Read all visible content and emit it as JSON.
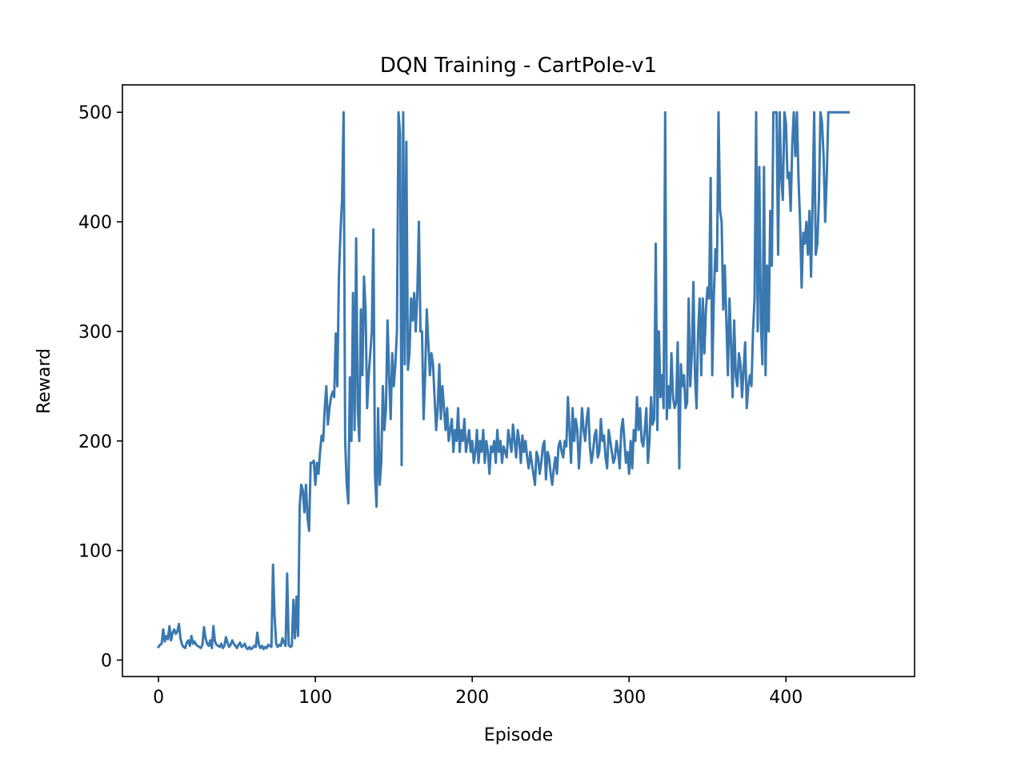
{
  "chart_data": {
    "type": "line",
    "title": "DQN Training - CartPole-v1",
    "xlabel": "Episode",
    "ylabel": "Reward",
    "xlim": [
      -23,
      482
    ],
    "ylim": [
      -15,
      525
    ],
    "xticks": [
      0,
      100,
      200,
      300,
      400
    ],
    "yticks": [
      0,
      100,
      200,
      300,
      400,
      500
    ],
    "grid": false,
    "series": [
      {
        "color": "#3a78b0",
        "x_start": 0,
        "x_step": 1,
        "values": [
          12,
          14,
          15,
          28,
          17,
          22,
          19,
          31,
          18,
          25,
          28,
          24,
          26,
          33,
          20,
          14,
          12,
          11,
          16,
          18,
          13,
          22,
          15,
          17,
          14,
          13,
          12,
          11,
          14,
          30,
          20,
          15,
          13,
          18,
          11,
          31,
          17,
          14,
          13,
          12,
          15,
          11,
          13,
          21,
          16,
          12,
          14,
          18,
          15,
          13,
          11,
          14,
          16,
          12,
          13,
          15,
          11,
          10,
          12,
          10,
          11,
          13,
          12,
          25,
          14,
          11,
          13,
          10,
          12,
          11,
          14,
          13,
          12,
          87,
          40,
          15,
          12,
          14,
          13,
          20,
          16,
          13,
          79,
          14,
          12,
          13,
          55,
          20,
          58,
          22,
          140,
          160,
          155,
          135,
          160,
          130,
          118,
          180,
          180,
          182,
          160,
          180,
          170,
          190,
          205,
          200,
          230,
          250,
          215,
          230,
          240,
          245,
          240,
          298,
          250,
          350,
          390,
          420,
          500,
          200,
          160,
          143,
          258,
          200,
          335,
          210,
          385,
          230,
          200,
          320,
          260,
          350,
          320,
          230,
          260,
          280,
          300,
          393,
          170,
          140,
          230,
          160,
          180,
          250,
          210,
          230,
          310,
          260,
          220,
          280,
          250,
          270,
          300,
          500,
          480,
          178,
          500,
          270,
          473,
          265,
          280,
          330,
          310,
          335,
          300,
          335,
          400,
          300,
          300,
          220,
          260,
          320,
          290,
          260,
          280,
          270,
          240,
          210,
          230,
          270,
          220,
          250,
          230,
          210,
          230,
          200,
          210,
          220,
          190,
          210,
          200,
          230,
          190,
          210,
          200,
          220,
          190,
          200,
          210,
          190,
          200,
          180,
          190,
          210,
          180,
          200,
          190,
          210,
          180,
          200,
          190,
          170,
          195,
          190,
          200,
          180,
          210,
          190,
          200,
          180,
          195,
          190,
          185,
          210,
          200,
          190,
          215,
          200,
          185,
          210,
          200,
          180,
          205,
          190,
          200,
          185,
          175,
          190,
          180,
          170,
          160,
          190,
          185,
          170,
          180,
          195,
          200,
          165,
          190,
          185,
          170,
          160,
          175,
          185,
          170,
          195,
          200,
          190,
          185,
          200,
          195,
          240,
          210,
          180,
          230,
          200,
          220,
          210,
          175,
          200,
          230,
          210,
          200,
          220,
          230,
          195,
          180,
          190,
          205,
          210,
          185,
          190,
          220,
          200,
          205,
          185,
          175,
          210,
          200,
          190,
          180,
          185,
          200,
          190,
          175,
          210,
          220,
          200,
          180,
          190,
          170,
          200,
          175,
          210,
          200,
          240,
          210,
          230,
          200,
          195,
          210,
          230,
          180,
          200,
          240,
          215,
          220,
          380,
          210,
          300,
          240,
          260,
          230,
          500,
          220,
          250,
          230,
          280,
          240,
          230,
          235,
          290,
          175,
          270,
          250,
          260,
          230,
          235,
          330,
          250,
          280,
          345,
          260,
          230,
          300,
          330,
          260,
          330,
          280,
          320,
          340,
          330,
          440,
          260,
          330,
          375,
          355,
          500,
          410,
          400,
          320,
          360,
          310,
          260,
          330,
          290,
          240,
          310,
          260,
          250,
          280,
          270,
          240,
          265,
          290,
          230,
          250,
          260,
          250,
          300,
          330,
          500,
          300,
          450,
          310,
          270,
          450,
          260,
          360,
          300,
          410,
          360,
          500,
          500,
          500,
          370,
          500,
          440,
          420,
          500,
          490,
          440,
          445,
          410,
          470,
          500,
          460,
          500,
          440,
          400,
          340,
          390,
          380,
          400,
          370,
          410,
          350,
          420,
          500,
          370,
          380,
          420,
          500,
          490,
          460,
          400,
          440,
          500,
          500,
          500,
          500,
          500,
          500,
          500,
          500,
          500,
          500,
          500,
          500,
          500,
          500
        ]
      }
    ]
  }
}
